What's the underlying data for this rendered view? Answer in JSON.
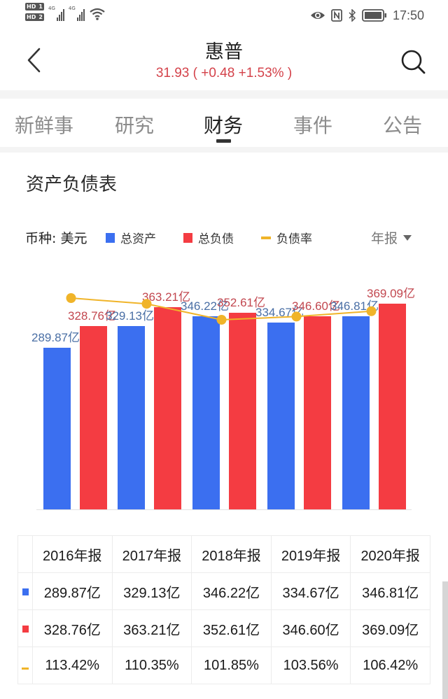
{
  "status_bar": {
    "sim1": "HD 1",
    "sim2": "HD 2",
    "network1": "4G",
    "network2": "4G",
    "time": "17:50",
    "icons": [
      "eye-icon",
      "nfc-icon",
      "bluetooth-icon",
      "battery-icon"
    ]
  },
  "header": {
    "title": "惠普",
    "quote": "31.93 ( +0.48 +1.53% )",
    "price": "31.93",
    "change": "+0.48",
    "change_pct": "+1.53%",
    "back_icon": "chevron-left-icon",
    "search_icon": "search-icon"
  },
  "tabs": [
    {
      "label": "新鲜事",
      "active": false
    },
    {
      "label": "研究",
      "active": false
    },
    {
      "label": "财务",
      "active": true
    },
    {
      "label": "事件",
      "active": false
    },
    {
      "label": "公告",
      "active": false
    }
  ],
  "section": {
    "title": "资产负债表",
    "currency_label": "币种: 美元",
    "period_selector": "年报",
    "legend": [
      {
        "label": "总资产",
        "color": "#3b6ff0",
        "shape": "square"
      },
      {
        "label": "总负债",
        "color": "#f43c42",
        "shape": "square"
      },
      {
        "label": "负债率",
        "color": "#f0b429",
        "shape": "line"
      }
    ]
  },
  "colors": {
    "assets": "#3b6ff0",
    "liabilities": "#f43c42",
    "ratio": "#f0b429",
    "assets_label": "#4a6fa5",
    "liabilities_label": "#c2474f",
    "quote": "#d4424a"
  },
  "chart_data": {
    "type": "bar",
    "title": "资产负债表",
    "xlabel": "",
    "ylabel": "",
    "unit": "亿 (美元)",
    "categories": [
      "2016年报",
      "2017年报",
      "2018年报",
      "2019年报",
      "2020年报"
    ],
    "series": [
      {
        "name": "总资产",
        "type": "bar",
        "color": "#3b6ff0",
        "values": [
          289.87,
          329.13,
          346.22,
          334.67,
          346.81
        ],
        "labels": [
          "289.87亿",
          "329.13亿",
          "346.22亿",
          "334.67亿",
          "346.81亿"
        ]
      },
      {
        "name": "总负债",
        "type": "bar",
        "color": "#f43c42",
        "values": [
          328.76,
          363.21,
          352.61,
          346.6,
          369.09
        ],
        "labels": [
          "328.76亿",
          "363.21亿",
          "352.61亿",
          "346.60亿",
          "369.09亿"
        ]
      },
      {
        "name": "负债率",
        "type": "line",
        "color": "#f0b429",
        "values": [
          113.42,
          110.35,
          101.85,
          103.56,
          106.42
        ],
        "labels": [
          "113.42%",
          "110.35%",
          "101.85%",
          "103.56%",
          "106.42%"
        ]
      }
    ],
    "grid": false,
    "legend_position": "top",
    "axes_visible": false
  },
  "table": {
    "headers": [
      "",
      "2016年报",
      "2017年报",
      "2018年报",
      "2019年报",
      "2020年报"
    ],
    "rows": [
      {
        "series": "总资产",
        "marker": "square",
        "color": "#3b6ff0",
        "cells": [
          "289.87亿",
          "329.13亿",
          "346.22亿",
          "334.67亿",
          "346.81亿"
        ]
      },
      {
        "series": "总负债",
        "marker": "square",
        "color": "#f43c42",
        "cells": [
          "328.76亿",
          "363.21亿",
          "352.61亿",
          "346.60亿",
          "369.09亿"
        ]
      },
      {
        "series": "负债率",
        "marker": "line",
        "color": "#f0b429",
        "cells": [
          "113.42%",
          "110.35%",
          "101.85%",
          "103.56%",
          "106.42%"
        ]
      }
    ]
  }
}
